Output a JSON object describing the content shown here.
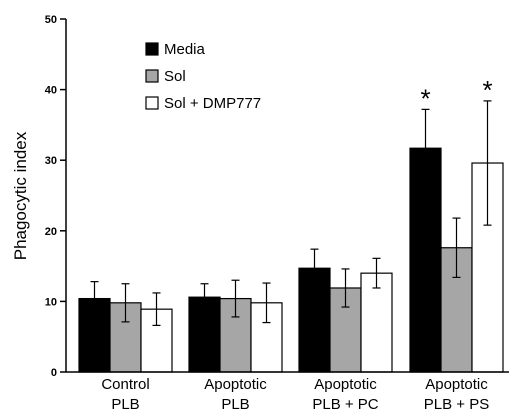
{
  "chart_data": {
    "type": "bar",
    "ylabel": "Phagocytic index",
    "ylim": [
      0,
      50
    ],
    "yticks": [
      "0",
      "10",
      "20",
      "30",
      "40",
      "50"
    ],
    "categories": [
      [
        "Control",
        "PLB"
      ],
      [
        "Apoptotic",
        "PLB"
      ],
      [
        "Apoptotic",
        "PLB + PC"
      ],
      [
        "Apoptotic",
        "PLB + PS"
      ]
    ],
    "series": [
      {
        "name": "Media",
        "color": "#000000",
        "values": [
          10.4,
          10.6,
          14.7,
          31.7
        ],
        "errors": [
          2.4,
          1.9,
          2.7,
          5.5
        ]
      },
      {
        "name": "Sol",
        "color": "#a6a6a6",
        "values": [
          9.8,
          10.4,
          11.9,
          17.6
        ],
        "errors": [
          2.7,
          2.6,
          2.7,
          4.2
        ]
      },
      {
        "name": "Sol + DMP777",
        "color": "#ffffff",
        "values": [
          8.9,
          9.8,
          14.0,
          29.6
        ],
        "errors": [
          2.3,
          2.8,
          2.1,
          8.8
        ]
      }
    ],
    "annotations": [
      {
        "text": "*",
        "category": 3,
        "series": 0
      },
      {
        "text": "*",
        "category": 3,
        "series": 2
      }
    ],
    "legend_position": "top-left"
  }
}
